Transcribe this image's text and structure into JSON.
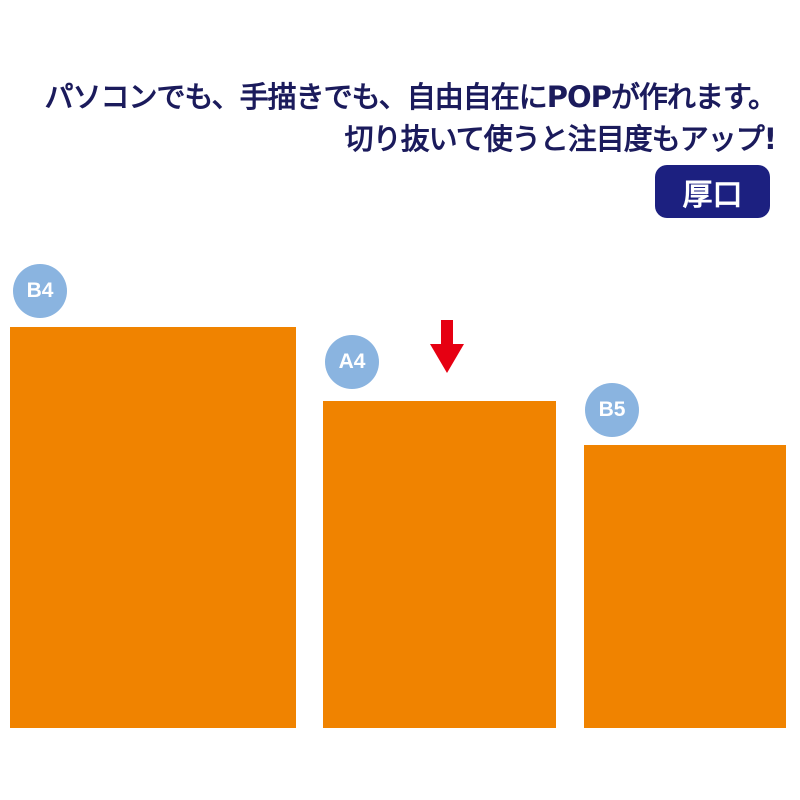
{
  "headline": {
    "line1": "パソコンでも、手描きでも、自由自在にPOPが作れます。",
    "line2": "切り抜いて使うと注目度もアップ!"
  },
  "badge": {
    "label": "厚口",
    "color": "#1c2080"
  },
  "sizes": [
    {
      "label": "B4",
      "color": "#f08300"
    },
    {
      "label": "A4",
      "color": "#f08300",
      "highlighted": true
    },
    {
      "label": "B5",
      "color": "#f08300"
    }
  ],
  "colors": {
    "label_circle": "#8ab4e0",
    "arrow": "#e60012",
    "text": "#1b1b5c"
  },
  "icons": {
    "highlight": "arrow-down-icon"
  }
}
